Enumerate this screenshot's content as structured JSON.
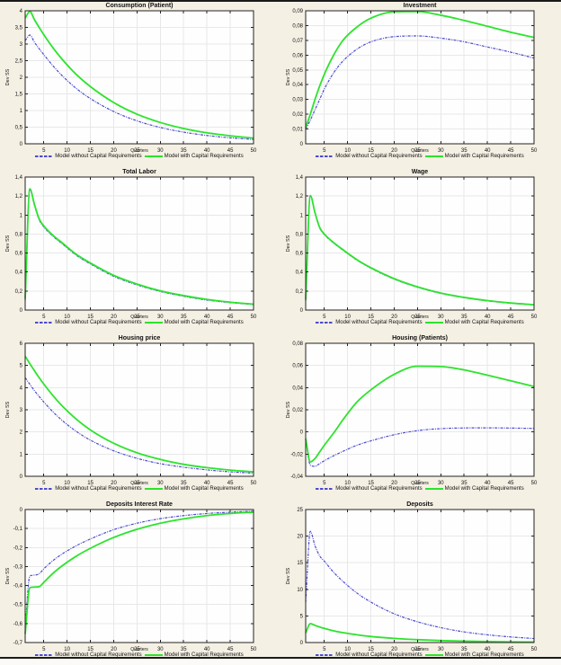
{
  "page": {
    "bg": "#f5f0e4",
    "rule_color": "#1b1b1b"
  },
  "labels": {
    "xlabel": "Quarters",
    "ylabel": "Dev SS"
  },
  "legend": {
    "without_label": "Model without Capital Requirements",
    "with_label": "Model with Capital Requirements"
  },
  "style": {
    "blue": "#4b4bd2",
    "green": "#2de32d",
    "grid": "#e8e8e8",
    "axis": "#222222",
    "plot_bg": "#fefefe",
    "blue_dash": "3 1.2 1 1.2",
    "blue_width": 1.2,
    "green_width": 1.8
  },
  "x_ticks": [
    5,
    10,
    15,
    20,
    25,
    30,
    35,
    40,
    45,
    50
  ],
  "chart_data": [
    {
      "type": "line",
      "title": "Consumption (Patient)",
      "xlabel": "Quarters",
      "ylabel": "Dev SS",
      "xlim": [
        1,
        50
      ],
      "ylim": [
        0,
        4
      ],
      "grid": true,
      "legend_position": "below-horizontal",
      "ytick_vals": [
        0,
        0.5,
        1,
        1.5,
        2,
        2.5,
        3,
        3.5,
        4
      ],
      "ytick_labels": [
        "0",
        "0,5",
        "1",
        "1,5",
        "2",
        "2,5",
        "3",
        "3,5",
        "4"
      ],
      "x": [
        1,
        2,
        3,
        4,
        5,
        7,
        9,
        12,
        15,
        20,
        25,
        30,
        35,
        40,
        45,
        50
      ],
      "series": [
        {
          "name": "Model without Capital Requirements",
          "color": "blue",
          "values": [
            3.1,
            3.27,
            3.05,
            2.86,
            2.68,
            2.34,
            2.04,
            1.66,
            1.36,
            0.97,
            0.69,
            0.49,
            0.35,
            0.25,
            0.18,
            0.13
          ]
        },
        {
          "name": "Model with Capital Requirements",
          "color": "green",
          "values": [
            3.78,
            3.98,
            3.73,
            3.5,
            3.28,
            2.88,
            2.53,
            2.08,
            1.72,
            1.24,
            0.89,
            0.64,
            0.46,
            0.33,
            0.24,
            0.17
          ]
        }
      ]
    },
    {
      "type": "line",
      "title": "Investment",
      "xlabel": "Quarters",
      "ylabel": "Dev SS",
      "xlim": [
        1,
        50
      ],
      "ylim": [
        0,
        0.09
      ],
      "grid": true,
      "legend_position": "below-horizontal",
      "ytick_vals": [
        0,
        0.01,
        0.02,
        0.03,
        0.04,
        0.05,
        0.06,
        0.07,
        0.08,
        0.09
      ],
      "ytick_labels": [
        "0",
        "0,01",
        "0,02",
        "0,03",
        "0,04",
        "0,05",
        "0,06",
        "0,07",
        "0,08",
        "0,09"
      ],
      "x": [
        1,
        2,
        3,
        4,
        5,
        7,
        9,
        12,
        15,
        20,
        25,
        30,
        35,
        40,
        45,
        50
      ],
      "series": [
        {
          "name": "Model without Capital Requirements",
          "color": "blue",
          "values": [
            0.01,
            0.016,
            0.023,
            0.03,
            0.037,
            0.048,
            0.056,
            0.064,
            0.069,
            0.0725,
            0.073,
            0.0715,
            0.069,
            0.0655,
            0.062,
            0.058
          ]
        },
        {
          "name": "Model with Capital Requirements",
          "color": "green",
          "values": [
            0.011,
            0.02,
            0.03,
            0.039,
            0.047,
            0.06,
            0.07,
            0.079,
            0.085,
            0.0893,
            0.0895,
            0.087,
            0.0835,
            0.0795,
            0.0755,
            0.072
          ]
        }
      ]
    },
    {
      "type": "line",
      "title": "Total Labor",
      "xlabel": "Quarters",
      "ylabel": "Dev SS",
      "xlim": [
        1,
        50
      ],
      "ylim": [
        0,
        1.4
      ],
      "grid": true,
      "legend_position": "below-horizontal",
      "ytick_vals": [
        0,
        0.2,
        0.4,
        0.6,
        0.8,
        1,
        1.2,
        1.4
      ],
      "ytick_labels": [
        "0",
        "0,2",
        "0,4",
        "0,6",
        "0,8",
        "1",
        "1,2",
        "1,4"
      ],
      "x": [
        1,
        2,
        3,
        4,
        5,
        7,
        9,
        12,
        15,
        20,
        25,
        30,
        35,
        40,
        45,
        50
      ],
      "series": [
        {
          "name": "Model without Capital Requirements",
          "color": "blue",
          "values": [
            0.1,
            1.27,
            1.1,
            0.95,
            0.875,
            0.775,
            0.695,
            0.575,
            0.485,
            0.355,
            0.265,
            0.195,
            0.145,
            0.105,
            0.078,
            0.058
          ]
        },
        {
          "name": "Model with Capital Requirements",
          "color": "green",
          "values": [
            0.12,
            1.275,
            1.11,
            0.96,
            0.885,
            0.785,
            0.705,
            0.585,
            0.495,
            0.365,
            0.273,
            0.202,
            0.152,
            0.112,
            0.083,
            0.062
          ]
        }
      ]
    },
    {
      "type": "line",
      "title": "Wage",
      "xlabel": "Quarters",
      "ylabel": "Dev SS",
      "xlim": [
        1,
        50
      ],
      "ylim": [
        0,
        1.4
      ],
      "grid": true,
      "legend_position": "below-horizontal",
      "ytick_vals": [
        0,
        0.2,
        0.4,
        0.6,
        0.8,
        1,
        1.2,
        1.4
      ],
      "ytick_labels": [
        "0",
        "0,2",
        "0,4",
        "0,6",
        "0,8",
        "1",
        "1,2",
        "1,4"
      ],
      "x": [
        1,
        2,
        3,
        4,
        5,
        7,
        9,
        12,
        15,
        20,
        25,
        30,
        35,
        40,
        45,
        50
      ],
      "series": [
        {
          "name": "Model without Capital Requirements",
          "color": "blue",
          "values": [
            0.1,
            1.2,
            1.02,
            0.865,
            0.795,
            0.705,
            0.63,
            0.525,
            0.44,
            0.325,
            0.24,
            0.175,
            0.13,
            0.096,
            0.072,
            0.054
          ]
        },
        {
          "name": "Model with Capital Requirements",
          "color": "green",
          "values": [
            0.11,
            1.205,
            1.025,
            0.87,
            0.8,
            0.71,
            0.635,
            0.53,
            0.445,
            0.33,
            0.244,
            0.179,
            0.133,
            0.099,
            0.074,
            0.056
          ]
        }
      ]
    },
    {
      "type": "line",
      "title": "Housing price",
      "xlabel": "Quarters",
      "ylabel": "Dev SS",
      "xlim": [
        1,
        50
      ],
      "ylim": [
        0,
        6
      ],
      "grid": true,
      "legend_position": "below-horizontal",
      "ytick_vals": [
        0,
        1,
        2,
        3,
        4,
        5,
        6
      ],
      "ytick_labels": [
        "0",
        "1",
        "2",
        "3",
        "4",
        "5",
        "6"
      ],
      "x": [
        1,
        2,
        3,
        4,
        5,
        7,
        9,
        12,
        15,
        20,
        25,
        30,
        35,
        40,
        45,
        50
      ],
      "series": [
        {
          "name": "Model without Capital Requirements",
          "color": "blue",
          "values": [
            4.45,
            4.15,
            3.86,
            3.6,
            3.35,
            2.9,
            2.51,
            2.02,
            1.63,
            1.15,
            0.81,
            0.57,
            0.41,
            0.29,
            0.2,
            0.14
          ]
        },
        {
          "name": "Model with Capital Requirements",
          "color": "green",
          "values": [
            5.42,
            5.08,
            4.76,
            4.45,
            4.16,
            3.63,
            3.16,
            2.57,
            2.09,
            1.49,
            1.06,
            0.76,
            0.54,
            0.39,
            0.28,
            0.2
          ]
        }
      ]
    },
    {
      "type": "line",
      "title": "Housing (Patients)",
      "xlabel": "Quarters",
      "ylabel": "Dev SS",
      "xlim": [
        1,
        50
      ],
      "ylim": [
        -0.04,
        0.08
      ],
      "grid": true,
      "legend_position": "below-horizontal",
      "ytick_vals": [
        -0.04,
        -0.02,
        0,
        0.02,
        0.04,
        0.06,
        0.08
      ],
      "ytick_labels": [
        "-0,04",
        "-0,02",
        "0",
        "0,02",
        "0,04",
        "0,06",
        "0,08"
      ],
      "x": [
        1,
        2,
        3,
        4,
        5,
        7,
        9,
        12,
        15,
        20,
        25,
        30,
        35,
        40,
        45,
        50
      ],
      "series": [
        {
          "name": "Model without Capital Requirements",
          "color": "blue",
          "values": [
            -0.006,
            -0.03,
            -0.031,
            -0.0285,
            -0.026,
            -0.0215,
            -0.0175,
            -0.012,
            -0.008,
            -0.0025,
            0.0012,
            0.003,
            0.0036,
            0.0037,
            0.0035,
            0.0032
          ]
        },
        {
          "name": "Model with Capital Requirements",
          "color": "green",
          "values": [
            -0.006,
            -0.027,
            -0.024,
            -0.018,
            -0.012,
            -0.001,
            0.011,
            0.027,
            0.038,
            0.052,
            0.0593,
            0.059,
            0.056,
            0.0512,
            0.0462,
            0.041
          ]
        }
      ]
    },
    {
      "type": "line",
      "title": "Deposits Interest Rate",
      "xlabel": "Quarters",
      "ylabel": "Dev SS",
      "xlim": [
        1,
        50
      ],
      "ylim": [
        -0.7,
        0
      ],
      "grid": true,
      "legend_position": "below-horizontal",
      "ytick_vals": [
        -0.7,
        -0.6,
        -0.5,
        -0.4,
        -0.3,
        -0.2,
        -0.1,
        0
      ],
      "ytick_labels": [
        "-0,7",
        "-0,6",
        "-0,5",
        "-0,4",
        "-0,3",
        "-0,2",
        "-0,1",
        "0"
      ],
      "x": [
        1,
        2,
        3,
        4,
        5,
        7,
        9,
        12,
        15,
        20,
        25,
        30,
        35,
        40,
        45,
        50
      ],
      "series": [
        {
          "name": "Model without Capital Requirements",
          "color": "blue",
          "values": [
            -0.62,
            -0.35,
            -0.345,
            -0.338,
            -0.312,
            -0.268,
            -0.233,
            -0.19,
            -0.155,
            -0.106,
            -0.072,
            -0.048,
            -0.032,
            -0.021,
            -0.014,
            -0.009
          ]
        },
        {
          "name": "Model with Capital Requirements",
          "color": "green",
          "values": [
            -0.655,
            -0.412,
            -0.408,
            -0.406,
            -0.383,
            -0.335,
            -0.295,
            -0.245,
            -0.204,
            -0.147,
            -0.104,
            -0.072,
            -0.049,
            -0.032,
            -0.021,
            -0.014
          ]
        }
      ]
    },
    {
      "type": "line",
      "title": "Deposits",
      "xlabel": "Quarters",
      "ylabel": "Dev SS",
      "xlim": [
        1,
        50
      ],
      "ylim": [
        0,
        25
      ],
      "grid": true,
      "legend_position": "below-horizontal",
      "ytick_vals": [
        0,
        5,
        10,
        15,
        20,
        25
      ],
      "ytick_labels": [
        "0",
        "5",
        "10",
        "15",
        "20",
        "25"
      ],
      "x": [
        1,
        2,
        3,
        4,
        5,
        7,
        9,
        12,
        15,
        20,
        25,
        30,
        35,
        40,
        45,
        50
      ],
      "series": [
        {
          "name": "Model without Capital Requirements",
          "color": "blue",
          "values": [
            7.6,
            20.9,
            18.2,
            16.3,
            15.3,
            13.2,
            11.5,
            9.3,
            7.6,
            5.4,
            3.9,
            2.8,
            2.0,
            1.45,
            1.05,
            0.75
          ]
        },
        {
          "name": "Model with Capital Requirements",
          "color": "green",
          "values": [
            1.8,
            3.55,
            3.22,
            2.92,
            2.66,
            2.2,
            1.85,
            1.45,
            1.13,
            0.78,
            0.54,
            0.37,
            0.26,
            0.18,
            0.13,
            0.1
          ]
        }
      ]
    }
  ]
}
